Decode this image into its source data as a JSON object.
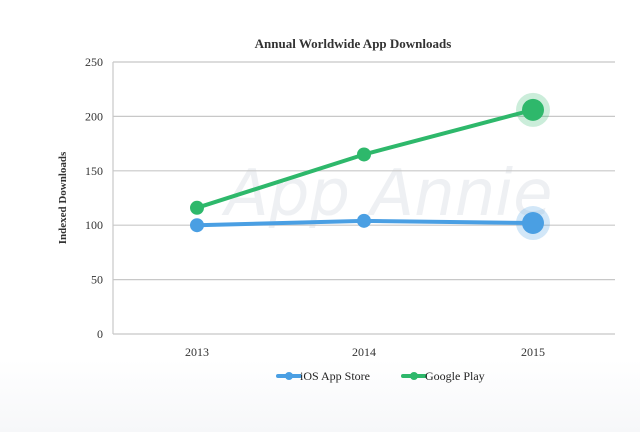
{
  "chart_data": {
    "type": "line",
    "title": "Annual Worldwide App Downloads",
    "xlabel": "",
    "ylabel": "Indexed Downloads",
    "categories": [
      "2013",
      "2014",
      "2015"
    ],
    "series": [
      {
        "name": "iOS App Store",
        "color": "#4a9fe3",
        "values": [
          100,
          104,
          102
        ]
      },
      {
        "name": "Google Play",
        "color": "#2eb86b",
        "values": [
          116,
          165,
          206
        ]
      }
    ],
    "ylim": [
      0,
      250
    ],
    "yticks": [
      0,
      50,
      100,
      150,
      200,
      250
    ],
    "grid": true,
    "legend_position": "bottom",
    "highlight_last_point": true,
    "watermark": "App Annie"
  }
}
